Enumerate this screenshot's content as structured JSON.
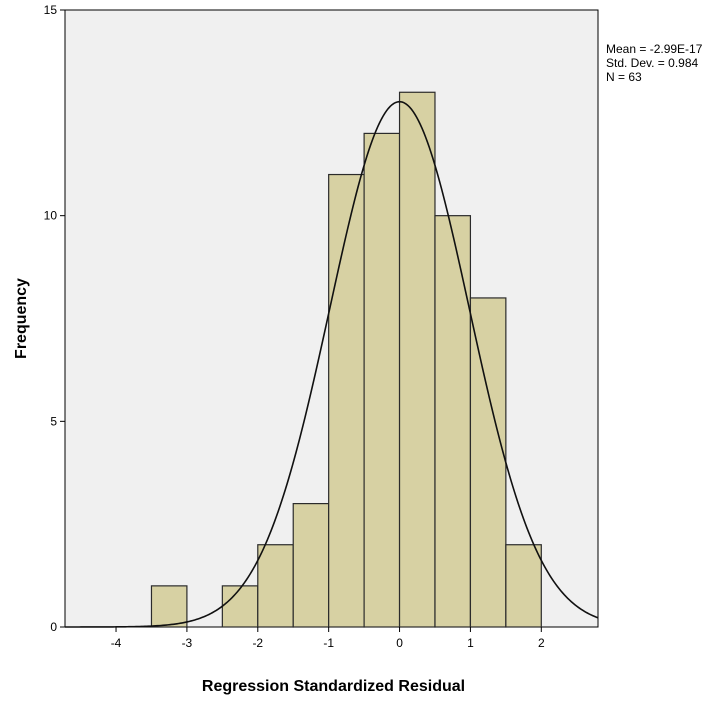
{
  "chart_data": {
    "type": "bar",
    "title": "",
    "xlabel": "Regression Standardized Residual",
    "ylabel": "Frequency",
    "xlim": [
      -4.72,
      2.8
    ],
    "ylim": [
      0,
      15
    ],
    "x_ticks": [
      -4,
      -3,
      -2,
      -1,
      0,
      1,
      2
    ],
    "y_ticks": [
      0,
      5,
      10,
      15
    ],
    "bin_width": 0.5,
    "bins": [
      {
        "start": -3.5,
        "end": -3.0,
        "count": 1
      },
      {
        "start": -2.5,
        "end": -2.0,
        "count": 1
      },
      {
        "start": -2.0,
        "end": -1.5,
        "count": 2
      },
      {
        "start": -1.5,
        "end": -1.0,
        "count": 3
      },
      {
        "start": -1.0,
        "end": -0.5,
        "count": 11
      },
      {
        "start": -0.5,
        "end": 0.0,
        "count": 12
      },
      {
        "start": 0.0,
        "end": 0.5,
        "count": 13
      },
      {
        "start": 0.5,
        "end": 1.0,
        "count": 10
      },
      {
        "start": 1.0,
        "end": 1.5,
        "count": 8
      },
      {
        "start": 1.5,
        "end": 2.0,
        "count": 2
      }
    ],
    "normal_curve": {
      "mean": -2.99e-17,
      "sd": 0.984,
      "n": 63
    },
    "grid": false,
    "legend_position": "top-right",
    "colors": {
      "bar_fill": "#d7d1a3",
      "bar_stroke": "#2b2b2b",
      "plot_bg": "#f0f0f0",
      "curve": "#111111"
    }
  },
  "stats": {
    "mean": "Mean = -2.99E-17",
    "sd": "Std. Dev. = 0.984",
    "n": "N = 63"
  }
}
